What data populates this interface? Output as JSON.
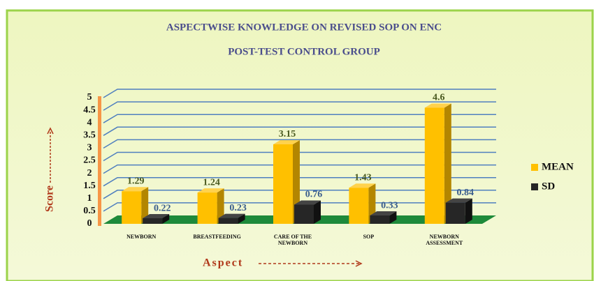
{
  "chart_data": {
    "type": "bar3d",
    "title": [
      "ASPECTWISE    KNOWLEDGE  ON     REVISED    SOP   ON  ENC",
      "POST-TEST    CONTROL   GROUP"
    ],
    "xlabel": "Aspect",
    "ylabel": "Score",
    "categories": [
      "NEWBORN",
      "BREASTFEEDING",
      "CARE OF THE NEWBORN",
      "SOP",
      "NEWBORN ASSESSMENT"
    ],
    "series": [
      {
        "name": "MEAN",
        "color": "#ffc000",
        "values": [
          1.29,
          1.24,
          3.15,
          1.43,
          4.6
        ]
      },
      {
        "name": "SD",
        "color": "#262626",
        "values": [
          0.22,
          0.23,
          0.76,
          0.33,
          0.84
        ]
      }
    ],
    "ylim": [
      0,
      5
    ],
    "yticks": [
      0,
      0.5,
      1,
      1.5,
      2,
      2.5,
      3,
      3.5,
      4,
      4.5,
      5
    ],
    "grid": true,
    "legend": "right"
  }
}
